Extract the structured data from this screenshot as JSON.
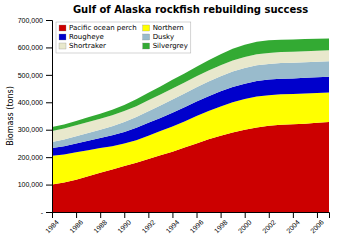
{
  "chart_data": {
    "type": "area",
    "stacked": true,
    "title": "Gulf of Alaska rockfish rebuilding success",
    "ylabel": "Biomass (tons)",
    "x": [
      1984,
      1985,
      1986,
      1987,
      1988,
      1989,
      1990,
      1991,
      1992,
      1993,
      1994,
      1995,
      1996,
      1997,
      1998,
      1999,
      2000,
      2001,
      2002,
      2003,
      2004,
      2005,
      2006,
      2007
    ],
    "series": [
      {
        "name": "Pacific ocean perch",
        "color": "#cc0000",
        "values": [
          100000,
          108000,
          118000,
          130000,
          143000,
          155000,
          168000,
          180000,
          193000,
          207000,
          220000,
          235000,
          250000,
          265000,
          278000,
          290000,
          300000,
          308000,
          314000,
          318000,
          320000,
          322000,
          325000,
          328000
        ]
      },
      {
        "name": "Northern",
        "color": "#ffff00",
        "values": [
          105000,
          102000,
          100000,
          95000,
          90000,
          85000,
          82000,
          82000,
          85000,
          88000,
          92000,
          95000,
          100000,
          103000,
          107000,
          110000,
          112000,
          113000,
          112000,
          111000,
          110000,
          110000,
          109000,
          108000
        ]
      },
      {
        "name": "Rougheye",
        "color": "#0000cc",
        "values": [
          28000,
          30000,
          32000,
          35000,
          37000,
          40000,
          42000,
          45000,
          47000,
          48000,
          50000,
          52000,
          53000,
          54000,
          55000,
          56000,
          56000,
          57000,
          57000,
          57000,
          57000,
          57000,
          57000,
          57000
        ]
      },
      {
        "name": "Dusky",
        "color": "#99bbcc",
        "values": [
          22000,
          24000,
          26000,
          28000,
          30000,
          33000,
          36000,
          39000,
          42000,
          45000,
          48000,
          50000,
          52000,
          54000,
          55000,
          56000,
          57000,
          57000,
          57000,
          57000,
          57000,
          57000,
          57000,
          57000
        ]
      },
      {
        "name": "Shortraker",
        "color": "#e8e8cc",
        "values": [
          40000,
          40000,
          40000,
          40000,
          40000,
          40000,
          40000,
          40000,
          40000,
          40000,
          40000,
          40000,
          40000,
          40000,
          40000,
          40000,
          40000,
          40000,
          40000,
          40000,
          40000,
          40000,
          40000,
          40000
        ]
      },
      {
        "name": "Silvergrey",
        "color": "#33aa33",
        "values": [
          15000,
          15000,
          16000,
          17000,
          18000,
          20000,
          22000,
          25000,
          28000,
          30000,
          32000,
          33000,
          35000,
          37000,
          40000,
          43000,
          45000,
          46000,
          46000,
          45000,
          45000,
          45000,
          44000,
          43000
        ]
      }
    ],
    "xlim": [
      1984,
      2007
    ],
    "xticks": [
      1984,
      1986,
      1988,
      1990,
      1992,
      1994,
      1996,
      1998,
      2000,
      2002,
      2004,
      2006
    ],
    "ylim": [
      0,
      700000
    ],
    "yticks": [
      {
        "value": 0,
        "label": "-"
      },
      {
        "value": 100000,
        "label": "100,000"
      },
      {
        "value": 200000,
        "label": "200,000"
      },
      {
        "value": 300000,
        "label": "300,000"
      },
      {
        "value": 400000,
        "label": "400,000"
      },
      {
        "value": 500000,
        "label": "500,000"
      },
      {
        "value": 600000,
        "label": "600,000"
      },
      {
        "value": 700000,
        "label": "700,000"
      }
    ],
    "grid": false,
    "legend": "upper left"
  }
}
